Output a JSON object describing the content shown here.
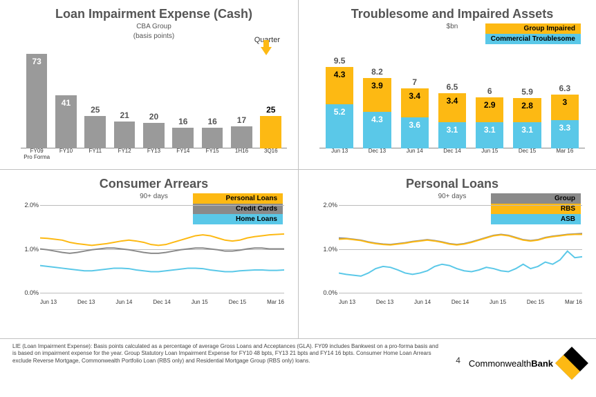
{
  "colors": {
    "gray_bar": "#9a9a9a",
    "yellow": "#fdb913",
    "cyan": "#5ac8e8",
    "line_gray": "#8a8a8a",
    "grid": "#bbbbbb"
  },
  "panel1": {
    "title": "Loan Impairment Expense (Cash)",
    "subtitle1": "CBA Group",
    "subtitle2": "(basis points)",
    "quarter_label": "Quarter",
    "type": "bar",
    "ymax": 80,
    "categories": [
      "FY09\nPro Forma",
      "FY10",
      "FY11",
      "FY12",
      "FY13",
      "FY14",
      "FY15",
      "1H16",
      "3Q16"
    ],
    "values": [
      73,
      41,
      25,
      21,
      20,
      16,
      16,
      17,
      25
    ],
    "highlight_index": 8
  },
  "panel2": {
    "title": "Troublesome and Impaired Assets",
    "subtitle": "$bn",
    "type": "stacked-bar",
    "ymax": 10.5,
    "legend": [
      {
        "label": "Group Impaired",
        "color": "#fdb913"
      },
      {
        "label": "Commercial Troublesome",
        "color": "#5ac8e8"
      }
    ],
    "categories": [
      "Jun 13",
      "Dec 13",
      "Jun 14",
      "Dec 14",
      "Jun 15",
      "Dec 15",
      "Mar 16"
    ],
    "totals": [
      9.5,
      8.2,
      7.0,
      6.5,
      6.0,
      5.9,
      6.3
    ],
    "impaired": [
      4.3,
      3.9,
      3.4,
      3.4,
      2.9,
      2.8,
      3.0
    ],
    "troublesome": [
      5.2,
      4.3,
      3.6,
      3.1,
      3.1,
      3.1,
      3.3
    ]
  },
  "panel3": {
    "title": "Consumer Arrears",
    "subtitle": "90+ days",
    "type": "line",
    "ylim": [
      0,
      2.0
    ],
    "ytick_step": 1.0,
    "legend": [
      {
        "label": "Personal Loans",
        "color": "#fdb913"
      },
      {
        "label": "Credit Cards",
        "color": "#8a8a8a"
      },
      {
        "label": "Home Loans",
        "color": "#5ac8e8"
      }
    ],
    "x_labels": [
      "Jun 13",
      "Dec 13",
      "Jun 14",
      "Dec 14",
      "Jun 15",
      "Dec 15",
      "Mar 16"
    ],
    "n_points": 34,
    "series": {
      "personal": [
        1.25,
        1.24,
        1.22,
        1.2,
        1.15,
        1.12,
        1.1,
        1.08,
        1.1,
        1.12,
        1.15,
        1.18,
        1.2,
        1.18,
        1.15,
        1.1,
        1.08,
        1.1,
        1.15,
        1.2,
        1.25,
        1.3,
        1.32,
        1.3,
        1.25,
        1.2,
        1.18,
        1.2,
        1.25,
        1.28,
        1.3,
        1.32,
        1.33,
        1.34
      ],
      "credit": [
        1.0,
        0.98,
        0.95,
        0.92,
        0.9,
        0.92,
        0.95,
        0.98,
        1.0,
        1.02,
        1.02,
        1.0,
        0.98,
        0.95,
        0.92,
        0.9,
        0.9,
        0.92,
        0.95,
        0.98,
        1.0,
        1.02,
        1.02,
        1.0,
        0.98,
        0.95,
        0.95,
        0.97,
        1.0,
        1.02,
        1.02,
        1.0,
        1.0,
        1.0
      ],
      "home": [
        0.62,
        0.6,
        0.58,
        0.56,
        0.54,
        0.52,
        0.5,
        0.5,
        0.52,
        0.54,
        0.56,
        0.56,
        0.55,
        0.52,
        0.5,
        0.48,
        0.48,
        0.5,
        0.52,
        0.54,
        0.56,
        0.56,
        0.55,
        0.52,
        0.5,
        0.48,
        0.48,
        0.5,
        0.51,
        0.52,
        0.52,
        0.51,
        0.51,
        0.52
      ]
    }
  },
  "panel4": {
    "title": "Personal Loans",
    "subtitle": "90+ days",
    "type": "line",
    "ylim": [
      0,
      2.0
    ],
    "ytick_step": 1.0,
    "legend": [
      {
        "label": "Group",
        "color": "#8a8a8a"
      },
      {
        "label": "RBS",
        "color": "#fdb913"
      },
      {
        "label": "ASB",
        "color": "#5ac8e8"
      }
    ],
    "x_labels": [
      "Jun 13",
      "Dec 13",
      "Jun 14",
      "Dec 14",
      "Jun 15",
      "Dec 15",
      "Mar 16"
    ],
    "n_points": 34,
    "series": {
      "group": [
        1.25,
        1.24,
        1.22,
        1.2,
        1.16,
        1.13,
        1.11,
        1.1,
        1.12,
        1.14,
        1.17,
        1.19,
        1.21,
        1.19,
        1.16,
        1.12,
        1.1,
        1.12,
        1.16,
        1.21,
        1.26,
        1.31,
        1.33,
        1.31,
        1.26,
        1.21,
        1.19,
        1.21,
        1.26,
        1.29,
        1.31,
        1.33,
        1.34,
        1.35
      ],
      "rbs": [
        1.22,
        1.23,
        1.21,
        1.19,
        1.15,
        1.12,
        1.1,
        1.09,
        1.11,
        1.13,
        1.16,
        1.18,
        1.2,
        1.18,
        1.15,
        1.11,
        1.09,
        1.11,
        1.15,
        1.2,
        1.25,
        1.3,
        1.32,
        1.3,
        1.25,
        1.2,
        1.18,
        1.2,
        1.25,
        1.28,
        1.3,
        1.32,
        1.33,
        1.33
      ],
      "asb": [
        0.45,
        0.42,
        0.4,
        0.38,
        0.45,
        0.55,
        0.6,
        0.58,
        0.52,
        0.45,
        0.42,
        0.45,
        0.5,
        0.6,
        0.65,
        0.62,
        0.55,
        0.5,
        0.48,
        0.52,
        0.58,
        0.55,
        0.5,
        0.48,
        0.55,
        0.65,
        0.55,
        0.6,
        0.7,
        0.65,
        0.75,
        0.95,
        0.8,
        0.82
      ]
    }
  },
  "footer": {
    "note": "LIE (Loan Impairment Expense): Basis points calculated as a percentage of average Gross Loans and Acceptances (GLA). FY09 includes Bankwest on a pro-forma basis and is based on impairment expense for the year. Group Statutory Loan Impairment Expense for FY10 48 bpts, FY13 21 bpts and FY14 16 bpts. Consumer Home Loan Arrears exclude Reverse Mortgage, Commonwealth Portfolio Loan (RBS only) and Residential Mortgage Group (RBS only) loans.",
    "page": "4",
    "brand_light": "Commonwealth",
    "brand_bold": "Bank"
  }
}
